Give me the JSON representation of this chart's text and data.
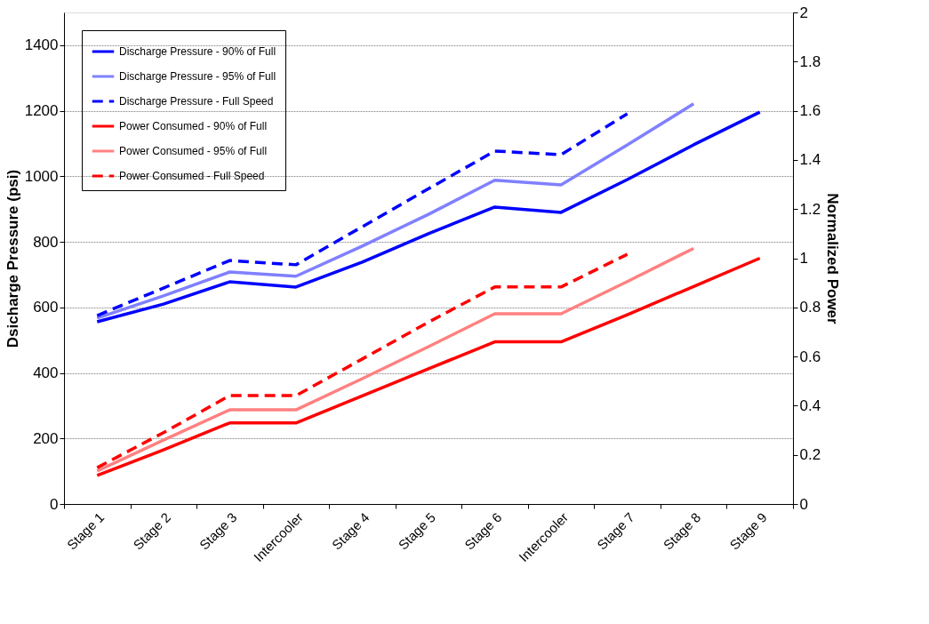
{
  "chart_data": {
    "type": "line",
    "ylabel": "Dsicharge Pressure (psi)",
    "y2label": "Normalized Power",
    "categories": [
      "Stage 1",
      "Stage 2",
      "Stage 3",
      "Intercooler",
      "Stage 4",
      "Stage 5",
      "Stage 6",
      "Intercooler",
      "Stage 7",
      "Stage 8",
      "Stage 9"
    ],
    "series": [
      {
        "name": "Discharge Pressure - 90% of Full",
        "color": "#0000ff",
        "line_style": "solid",
        "values": [
          556,
          610,
          678,
          662,
          738,
          825,
          906,
          890,
          990,
          1096,
          1196
        ]
      },
      {
        "name": "Discharge Pressure - 95% of Full",
        "color": "#8080ff",
        "line_style": "solid",
        "values": [
          567,
          635,
          708,
          695,
          787,
          884,
          988,
          974,
          1096,
          1221,
          null
        ]
      },
      {
        "name": "Discharge Pressure - Full Speed",
        "color": "#0000ff",
        "line_style": "dashed",
        "values": [
          575,
          659,
          743,
          730,
          846,
          962,
          1077,
          1066,
          1191,
          null,
          null
        ]
      },
      {
        "name": "Power Consumed - 90% of Full",
        "color": "#ff0000",
        "line_style": "solid",
        "axis": "y2",
        "values": [
          0.116,
          0.22,
          0.33,
          0.33,
          0.44,
          0.55,
          0.66,
          0.66,
          0.77,
          0.885,
          1.0
        ]
      },
      {
        "name": "Power Consumed - 95% of Full",
        "color": "#ff8080",
        "line_style": "solid",
        "axis": "y2",
        "values": [
          0.134,
          0.26,
          0.383,
          0.383,
          0.51,
          0.64,
          0.774,
          0.774,
          0.905,
          1.04,
          null
        ]
      },
      {
        "name": "Power Consumed - Full Speed",
        "color": "#ff0000",
        "line_style": "dashed",
        "axis": "y2",
        "values": [
          0.148,
          0.29,
          0.441,
          0.441,
          0.59,
          0.74,
          0.883,
          0.883,
          1.016,
          null,
          null
        ]
      }
    ],
    "ylim": [
      0,
      1500
    ],
    "yticks": [
      0,
      200,
      400,
      600,
      800,
      1000,
      1200,
      1400
    ],
    "y2lim": [
      0,
      2
    ],
    "y2ticks": [
      0,
      0.2,
      0.4,
      0.6,
      0.8,
      1,
      1.2,
      1.4,
      1.6,
      1.8,
      2
    ],
    "grid": "y",
    "legend": "top left",
    "marker": "none"
  }
}
